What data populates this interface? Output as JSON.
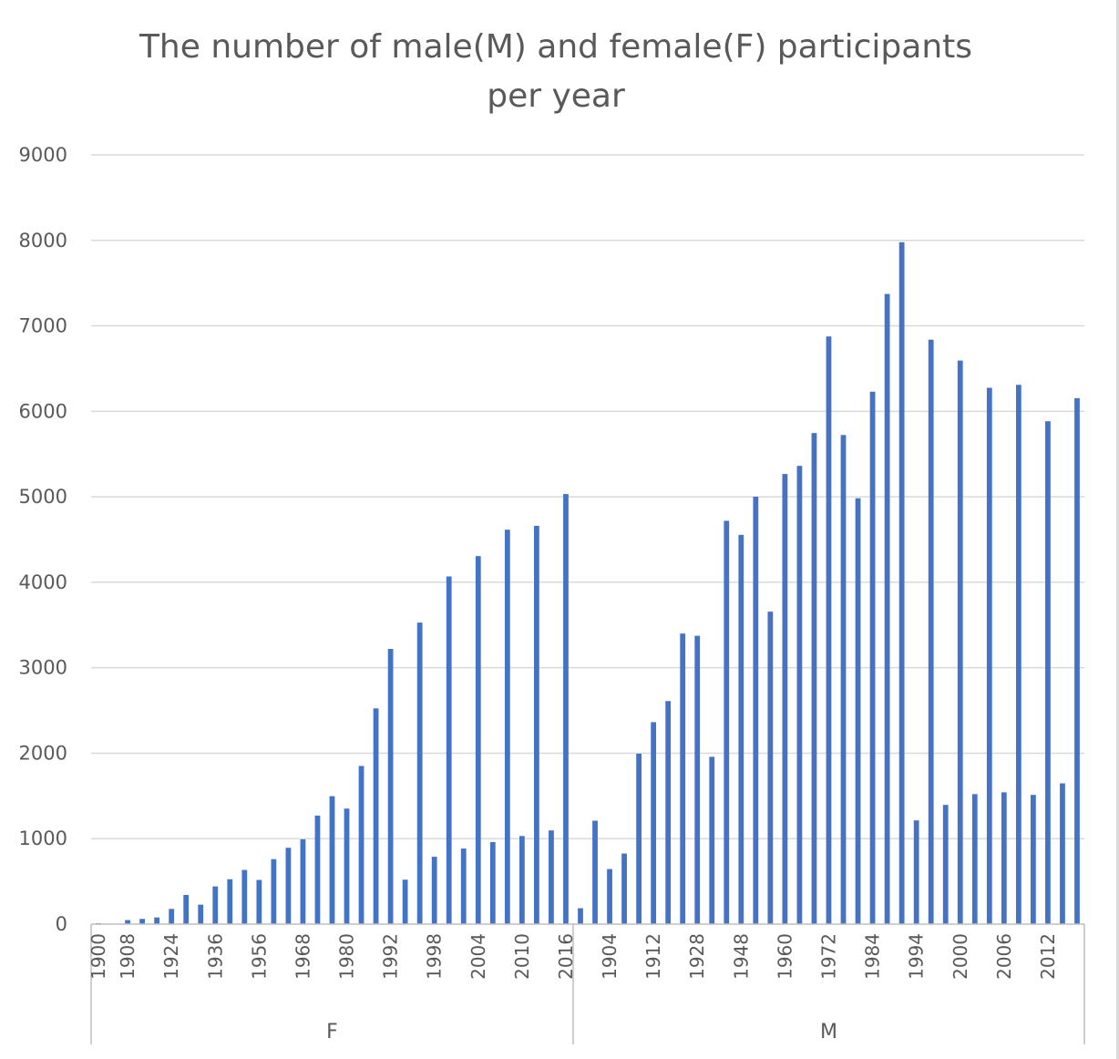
{
  "chart_data": {
    "type": "bar",
    "title": "The number of male(M) and female(F) participants",
    "title_line2": "per year",
    "xlabel": "",
    "ylabel": "",
    "ylim": [
      0,
      9000
    ],
    "yticks": [
      0,
      1000,
      2000,
      3000,
      4000,
      5000,
      6000,
      7000,
      8000,
      9000
    ],
    "grid": true,
    "legend": "none",
    "bar_color": "#4472c4",
    "groups": [
      {
        "name": "F",
        "categories": [
          "1900",
          "1904",
          "1908",
          "1912",
          "1920",
          "1924",
          "1928",
          "1932",
          "1936",
          "1948",
          "1952",
          "1956",
          "1960",
          "1964",
          "1968",
          "1972",
          "1976",
          "1980",
          "1984",
          "1988",
          "1992",
          "1994",
          "1996",
          "1998",
          "2000",
          "2002",
          "2004",
          "2006",
          "2008",
          "2010",
          "2012",
          "2014",
          "2016"
        ],
        "values": [
          11,
          0,
          47,
          61,
          78,
          178,
          341,
          228,
          441,
          525,
          634,
          517,
          760,
          893,
          992,
          1270,
          1497,
          1352,
          1851,
          2524,
          3220,
          520,
          3528,
          788,
          4068,
          884,
          4306,
          960,
          4615,
          1031,
          4660,
          1096,
          5032
        ],
        "tick_labels": [
          "1900",
          "1908",
          "1924",
          "1936",
          "1956",
          "1968",
          "1980",
          "1992",
          "1998",
          "2004",
          "2010",
          "2016"
        ]
      },
      {
        "name": "M",
        "categories": [
          "1896",
          "1900",
          "1904",
          "1906",
          "1908",
          "1912",
          "1920",
          "1924",
          "1928",
          "1932",
          "1936",
          "1948",
          "1952",
          "1956",
          "1960",
          "1964",
          "1968",
          "1972",
          "1976",
          "1980",
          "1984",
          "1988",
          "1992",
          "1994",
          "1996",
          "1998",
          "2000",
          "2002",
          "2004",
          "2006",
          "2008",
          "2010",
          "2012",
          "2014",
          "2016"
        ],
        "values": [
          186,
          1210,
          644,
          826,
          1994,
          2363,
          2610,
          3400,
          3374,
          1958,
          4719,
          4555,
          5001,
          3656,
          5267,
          5362,
          5746,
          6876,
          5723,
          4983,
          6230,
          7373,
          7979,
          1214,
          6838,
          1395,
          6594,
          1521,
          6275,
          1542,
          6310,
          1512,
          5884,
          1647,
          6154
        ],
        "tick_labels": [
          "1904",
          "1912",
          "1928",
          "1948",
          "1960",
          "1972",
          "1984",
          "1994",
          "2000",
          "2006",
          "2012"
        ]
      }
    ]
  }
}
